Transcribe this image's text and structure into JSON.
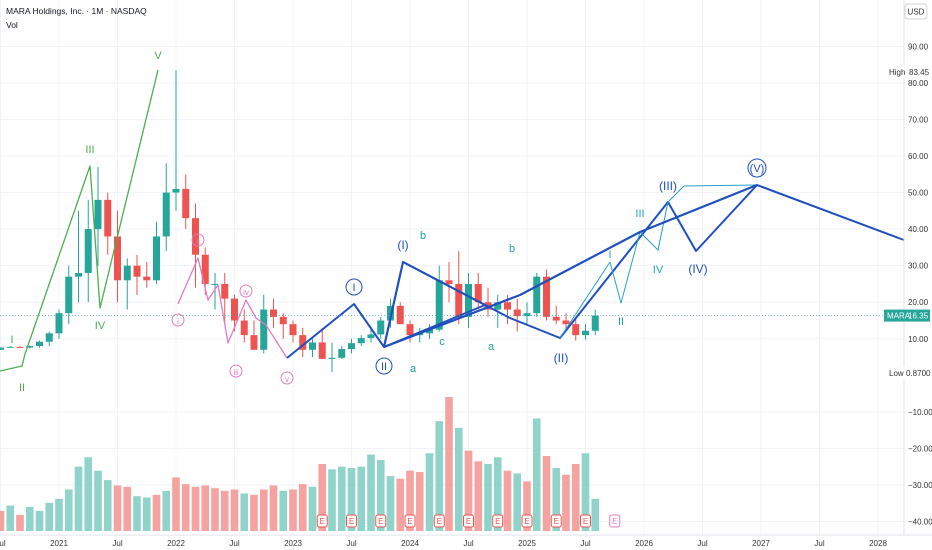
{
  "header": {
    "title": "MARA Holdings, Inc. · 1M · NASDAQ",
    "vol_label": "Vol"
  },
  "currency": "USD",
  "markers": {
    "high_label": "High",
    "high_value": "83.45",
    "low_label": "Low",
    "low_value": "0.8700",
    "last_label": "MARA",
    "last_value": "16.35"
  },
  "earnings_label": "E",
  "colors": {
    "up": "#26a69a",
    "down": "#ef5350",
    "vol_up": "#8fd3ca",
    "vol_down": "#f4a3a1",
    "wave_green": "#4caf50",
    "wave_pink": "#e07cc0",
    "wave_blue": "#1f4fbf",
    "wave_cyan": "#26a0c6",
    "wave_teal": "#20a39a",
    "price_line": "#26a69a"
  },
  "chart_data": {
    "type": "candlestick",
    "y_axis": {
      "ticks": [
        90,
        80,
        70,
        60,
        50,
        40,
        30,
        20,
        10,
        -10,
        -20,
        -30,
        -40
      ],
      "tick_labels": [
        "90.00",
        "80.00",
        "70.00",
        "60.00",
        "50.00",
        "40.00",
        "30.00",
        "20.00",
        "10.00",
        "−10.00",
        "−20.00",
        "−30.00",
        "−40.00"
      ],
      "range": [
        -42,
        95
      ]
    },
    "x_axis": {
      "tick_labels": [
        "Jul",
        "2021",
        "Jul",
        "2022",
        "Jul",
        "2023",
        "Jul",
        "2024",
        "Jul",
        "2025",
        "Jul",
        "2026",
        "Jul",
        "2027",
        "Jul",
        "2028"
      ],
      "tick_months": [
        0,
        6,
        12,
        18,
        24,
        30,
        36,
        42,
        48,
        54,
        60,
        66,
        72,
        78,
        84,
        90
      ]
    },
    "candles": [
      [
        0,
        7,
        7.6,
        7,
        7.6
      ],
      [
        1,
        7.8,
        8,
        7.6,
        7.8
      ],
      [
        2,
        7.8,
        8,
        7.5,
        7.6
      ],
      [
        3,
        7.6,
        8.2,
        7.4,
        8.0
      ],
      [
        4,
        8.0,
        9.5,
        7.6,
        9.2
      ],
      [
        5,
        9.2,
        12,
        8,
        11.5
      ],
      [
        6,
        11.5,
        18,
        10,
        17
      ],
      [
        7,
        17,
        30,
        14,
        27
      ],
      [
        8,
        27,
        45,
        20,
        28
      ],
      [
        9,
        28,
        48,
        20,
        40
      ],
      [
        10,
        40,
        57,
        30,
        48
      ],
      [
        11,
        48,
        50,
        33,
        38
      ],
      [
        12,
        38,
        45,
        20,
        26
      ],
      [
        13,
        26,
        32,
        18,
        30
      ],
      [
        14,
        30,
        33,
        22,
        27
      ],
      [
        15,
        27,
        31,
        24,
        26
      ],
      [
        16,
        26,
        42,
        25,
        38
      ],
      [
        17,
        38,
        58,
        34,
        50
      ],
      [
        18,
        50,
        83.45,
        45,
        51
      ],
      [
        19,
        51,
        55,
        40,
        43
      ],
      [
        20,
        43,
        47,
        24,
        33
      ],
      [
        21,
        33,
        35,
        22,
        25
      ],
      [
        22,
        25,
        28,
        18,
        25
      ],
      [
        23,
        25,
        28,
        14,
        21
      ],
      [
        24,
        21,
        22,
        12,
        15
      ],
      [
        25,
        15,
        18,
        9,
        11
      ],
      [
        26,
        11,
        15,
        7,
        7
      ],
      [
        27,
        7,
        22,
        6,
        18
      ],
      [
        28,
        18,
        21,
        13,
        16
      ],
      [
        29,
        16,
        17,
        10,
        14
      ],
      [
        30,
        14,
        15,
        9,
        11
      ],
      [
        31,
        11,
        13,
        5,
        7
      ],
      [
        32,
        7,
        10,
        5,
        9
      ],
      [
        33,
        9,
        13,
        4.5,
        4.5
      ],
      [
        34,
        4.5,
        9,
        0.87,
        4.8
      ],
      [
        35,
        4.8,
        8,
        4.5,
        7.2
      ],
      [
        36,
        7.2,
        10,
        6,
        8.8
      ],
      [
        37,
        8.8,
        11,
        8,
        10.2
      ],
      [
        38,
        10.2,
        13,
        9,
        11.2
      ],
      [
        39,
        11.2,
        16,
        10,
        15
      ],
      [
        40,
        15,
        21,
        13,
        19
      ],
      [
        41,
        19,
        20,
        14,
        14
      ],
      [
        42,
        14,
        15,
        9,
        11
      ],
      [
        43,
        11,
        13,
        9,
        11.5
      ],
      [
        44,
        11.5,
        14,
        10,
        12.5
      ],
      [
        45,
        12.5,
        30,
        12,
        26
      ],
      [
        46,
        26,
        31,
        20,
        25
      ],
      [
        47,
        25,
        34,
        14,
        16
      ],
      [
        48,
        16,
        28,
        13,
        25
      ],
      [
        49,
        25,
        28,
        18,
        20
      ],
      [
        50,
        20,
        24,
        16,
        18
      ],
      [
        51,
        18,
        22,
        13,
        20
      ],
      [
        52,
        20,
        22,
        14,
        18
      ],
      [
        53,
        18,
        21,
        12,
        16.2
      ],
      [
        54,
        16.2,
        20,
        14,
        17
      ],
      [
        55,
        17,
        28,
        16,
        27
      ],
      [
        56,
        27,
        29,
        15,
        16
      ],
      [
        57,
        16,
        19,
        14,
        15
      ],
      [
        58,
        15,
        17,
        12,
        14
      ],
      [
        59,
        14,
        16,
        9.5,
        11
      ],
      [
        60,
        11,
        14,
        9.8,
        12.2
      ],
      [
        61,
        12.2,
        18,
        11,
        16.35
      ]
    ],
    "volume": [
      [
        0,
        15,
        0
      ],
      [
        1,
        19,
        1
      ],
      [
        2,
        12,
        0
      ],
      [
        3,
        18,
        1
      ],
      [
        4,
        15,
        1
      ],
      [
        5,
        21,
        1
      ],
      [
        6,
        24,
        1
      ],
      [
        7,
        31,
        1
      ],
      [
        8,
        48,
        1
      ],
      [
        9,
        55,
        1
      ],
      [
        10,
        45,
        1
      ],
      [
        11,
        38,
        1
      ],
      [
        12,
        34,
        0
      ],
      [
        13,
        33,
        0
      ],
      [
        14,
        26,
        1
      ],
      [
        15,
        25,
        1
      ],
      [
        16,
        27,
        0
      ],
      [
        17,
        30,
        1
      ],
      [
        18,
        40,
        0
      ],
      [
        19,
        35,
        0
      ],
      [
        20,
        33,
        0
      ],
      [
        21,
        34,
        0
      ],
      [
        22,
        32,
        0
      ],
      [
        23,
        30,
        0
      ],
      [
        24,
        31,
        0
      ],
      [
        25,
        28,
        1
      ],
      [
        26,
        27,
        0
      ],
      [
        27,
        31,
        0
      ],
      [
        28,
        34,
        0
      ],
      [
        29,
        30,
        1
      ],
      [
        30,
        31,
        0
      ],
      [
        31,
        35,
        0
      ],
      [
        32,
        33,
        1
      ],
      [
        33,
        50,
        0
      ],
      [
        34,
        46,
        1
      ],
      [
        35,
        48,
        1
      ],
      [
        36,
        47,
        1
      ],
      [
        37,
        48,
        1
      ],
      [
        38,
        57,
        1
      ],
      [
        39,
        53,
        1
      ],
      [
        40,
        41,
        1
      ],
      [
        41,
        39,
        0
      ],
      [
        42,
        45,
        0
      ],
      [
        43,
        44,
        0
      ],
      [
        44,
        58,
        1
      ],
      [
        45,
        82,
        1
      ],
      [
        46,
        100,
        0
      ],
      [
        47,
        77,
        1
      ],
      [
        48,
        60,
        0
      ],
      [
        49,
        52,
        0
      ],
      [
        50,
        50,
        1
      ],
      [
        51,
        55,
        1
      ],
      [
        52,
        45,
        0
      ],
      [
        53,
        43,
        1
      ],
      [
        54,
        37,
        0
      ],
      [
        55,
        84,
        1
      ],
      [
        56,
        56,
        0
      ],
      [
        57,
        47,
        1
      ],
      [
        58,
        42,
        0
      ],
      [
        59,
        50,
        0
      ],
      [
        60,
        58,
        1
      ],
      [
        61,
        24,
        1
      ]
    ],
    "earnings_months": [
      33,
      36,
      39,
      42,
      45,
      48,
      51,
      54,
      57,
      60,
      63
    ],
    "waves": {
      "green": [
        [
          0,
          7.5
        ],
        [
          2,
          7
        ],
        [
          8.5,
          8.5
        ],
        [
          14,
          57.5
        ],
        [
          15.8,
          18
        ],
        [
          25.2,
          83.45
        ]
      ],
      "pink": [
        [
          27.5,
          19
        ],
        [
          30,
          32
        ],
        [
          31,
          20
        ],
        [
          33.5,
          25
        ],
        [
          35,
          7
        ],
        [
          37,
          12
        ],
        [
          38,
          18
        ],
        [
          38.5,
          21
        ],
        [
          41,
          15
        ],
        [
          44,
          13.5
        ],
        [
          47,
          7
        ]
      ],
      "blue": [
        [
          46,
          5.5
        ],
        [
          56.5,
          19.5
        ],
        [
          60,
          8
        ],
        [
          65.2,
          30.5
        ],
        [
          69,
          48
        ],
        [
          73,
          33
        ],
        [
          78.5,
          50
        ],
        [
          91,
          37
        ]
      ],
      "blue_main": [
        [
          48,
          5
        ],
        [
          60,
          20
        ],
        [
          64,
          8
        ],
        [
          68,
          32
        ],
        [
          75,
          22
        ],
        [
          82,
          45
        ],
        [
          92,
          20
        ]
      ],
      "cyan": [
        [
          94,
          9.5
        ],
        [
          101,
          41
        ],
        [
          103.5,
          20
        ],
        [
          107,
          40
        ],
        [
          110,
          33
        ],
        [
          112,
          47.5
        ],
        [
          118,
          31
        ],
        [
          126,
          52.5
        ]
      ],
      "trend": [
        [
          94,
          5.8
        ],
        [
          118,
          34
        ],
        [
          126,
          52.5
        ],
        [
          150,
          37
        ]
      ]
    },
    "wave_labels": {
      "green": [
        "I",
        "II",
        "III",
        "IV",
        "V"
      ],
      "pink": [
        "i",
        "ii",
        "iii",
        "iv",
        "v"
      ],
      "blue": [
        "I",
        "II",
        "(I)",
        "a",
        "b",
        "c",
        "a",
        "b",
        "(II)"
      ],
      "cyan": [
        "I",
        "II",
        "III",
        "IV",
        "(III)",
        "(IV)",
        "(V)"
      ]
    },
    "series": [
      {
        "values": []
      }
    ]
  }
}
